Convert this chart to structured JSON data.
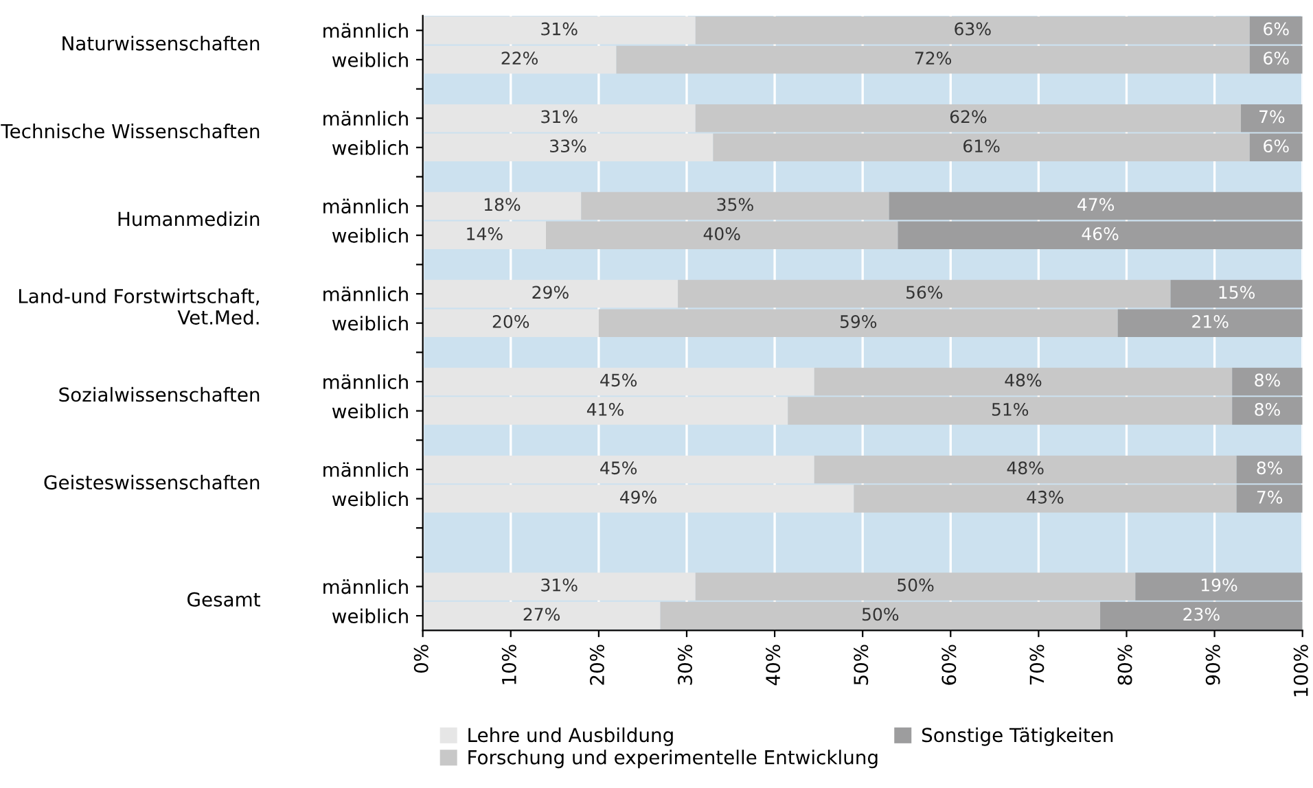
{
  "chart_data": {
    "type": "bar",
    "orientation": "horizontal",
    "stacked": true,
    "categories": [
      "männlich",
      "weiblich",
      null,
      "männlich",
      "weiblich",
      null,
      "männlich",
      "weiblich",
      null,
      "männlich",
      "weiblich",
      null,
      "männlich",
      "weiblich",
      null,
      "männlich",
      "weiblich",
      null,
      null,
      "männlich",
      "weiblich"
    ],
    "series": [
      {
        "name": "Lehre und Ausbildung",
        "color": "#e6e6e6",
        "values": [
          31,
          22,
          null,
          31,
          33,
          null,
          18,
          14,
          null,
          29,
          20,
          null,
          44.5,
          41.5,
          null,
          44.5,
          49,
          null,
          null,
          31,
          27
        ],
        "value_labels": [
          "31%",
          "22%",
          null,
          "31%",
          "33%",
          null,
          "18%",
          "14%",
          null,
          "29%",
          "20%",
          null,
          "45%",
          "41%",
          null,
          "45%",
          "49%",
          null,
          null,
          "31%",
          "27%"
        ]
      },
      {
        "name": "Forschung und experimentelle Entwicklung",
        "color": "#c8c8c8",
        "values": [
          63,
          72,
          null,
          62,
          61,
          null,
          35,
          40,
          null,
          56,
          59,
          null,
          47.5,
          50.5,
          null,
          48,
          43.5,
          null,
          null,
          50,
          50
        ],
        "value_labels": [
          "63%",
          "72%",
          null,
          "62%",
          "61%",
          null,
          "35%",
          "40%",
          null,
          "56%",
          "59%",
          null,
          "48%",
          "51%",
          null,
          "48%",
          "43%",
          null,
          null,
          "50%",
          "50%"
        ]
      },
      {
        "name": "Sonstige Tätigkeiten",
        "color": "#9d9d9e",
        "values": [
          6,
          6,
          null,
          7,
          6,
          null,
          47,
          46,
          null,
          15,
          21,
          null,
          8,
          8,
          null,
          7.5,
          7.5,
          null,
          null,
          19,
          23
        ],
        "value_labels": [
          "6%",
          "6%",
          null,
          "7%",
          "6%",
          null,
          "47%",
          "46%",
          null,
          "15%",
          "21%",
          null,
          "8%",
          "8%",
          null,
          "8%",
          "7%",
          null,
          null,
          "19%",
          "23%"
        ]
      }
    ],
    "annotations": [
      "Naturwissenschaften",
      "Technische Wissenschaften",
      "Humanmedizin",
      "Land-und Forstwirtschaft,\nVet.Med.",
      "Sozialwissenschaften",
      "Geisteswissenschaften",
      "Gesamt"
    ],
    "xlim": [
      0,
      100
    ],
    "xticks": [
      {
        "value": 0,
        "label": "0%"
      },
      {
        "value": 10,
        "label": "10%"
      },
      {
        "value": 20,
        "label": "20%"
      },
      {
        "value": 30,
        "label": "30%"
      },
      {
        "value": 40,
        "label": "40%"
      },
      {
        "value": 50,
        "label": "50%"
      },
      {
        "value": 60,
        "label": "60%"
      },
      {
        "value": 70,
        "label": "70%"
      },
      {
        "value": 80,
        "label": "80%"
      },
      {
        "value": 90,
        "label": "90%"
      },
      {
        "value": 100,
        "label": "100%"
      }
    ],
    "grid": "x",
    "legend": "bottom"
  }
}
